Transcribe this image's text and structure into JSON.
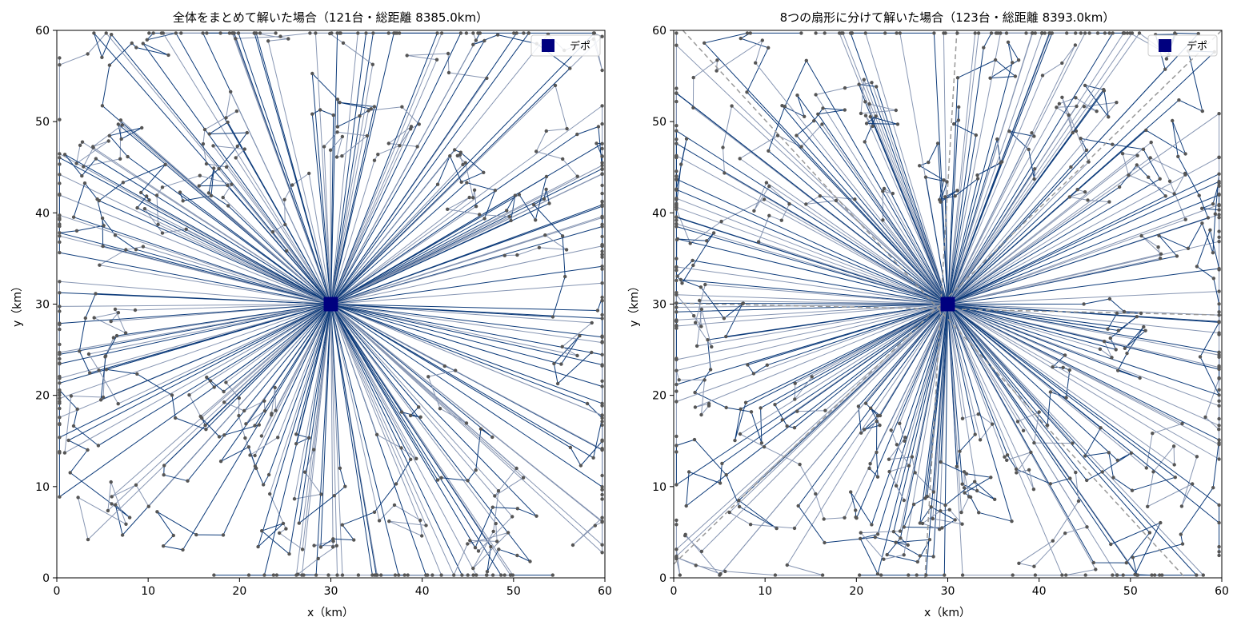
{
  "chart_data": [
    {
      "type": "scatter",
      "title": "全体をまとめて解いた場合（121台・総距離 8385.0km）",
      "xlabel": "x（km）",
      "ylabel": "y（km）",
      "xlim": [
        0,
        60
      ],
      "ylim": [
        0,
        60
      ],
      "xticks": [
        "0",
        "10",
        "20",
        "30",
        "40",
        "50",
        "60"
      ],
      "yticks": [
        "0",
        "10",
        "20",
        "30",
        "40",
        "50",
        "60"
      ],
      "grid": false,
      "legend": {
        "label": "デポ",
        "placement": "top-right"
      },
      "depot": {
        "x": 30,
        "y": 30
      },
      "vehicles": 121,
      "total_distance_km": 8385.0,
      "sector_boundaries": []
    },
    {
      "type": "scatter",
      "title": "8つの扇形に分けて解いた場合（123台・総距離 8393.0km）",
      "xlabel": "x（km）",
      "ylabel": "y（km）",
      "xlim": [
        0,
        60
      ],
      "ylim": [
        0,
        60
      ],
      "xticks": [
        "0",
        "10",
        "20",
        "30",
        "40",
        "50",
        "60"
      ],
      "yticks": [
        "0",
        "10",
        "20",
        "30",
        "40",
        "50",
        "60"
      ],
      "grid": false,
      "legend": {
        "label": "デポ",
        "placement": "top-right"
      },
      "depot": {
        "x": 30,
        "y": 30
      },
      "vehicles": 123,
      "total_distance_km": 8393.0,
      "sector_boundaries": [
        {
          "x": 0,
          "y": 30.1
        },
        {
          "x": 60,
          "y": 28.8
        },
        {
          "x": 27.5,
          "y": 0
        },
        {
          "x": 31,
          "y": 60
        },
        {
          "x": 0,
          "y": 1.5
        },
        {
          "x": 60,
          "y": 60
        },
        {
          "x": 1,
          "y": 60
        },
        {
          "x": 56,
          "y": 0
        }
      ]
    }
  ],
  "colors": {
    "route_dark": "#0d3b7a",
    "route_light": "#8796b3",
    "customer": "#555555",
    "depot": "#00007f",
    "sector_line": "#999999"
  }
}
